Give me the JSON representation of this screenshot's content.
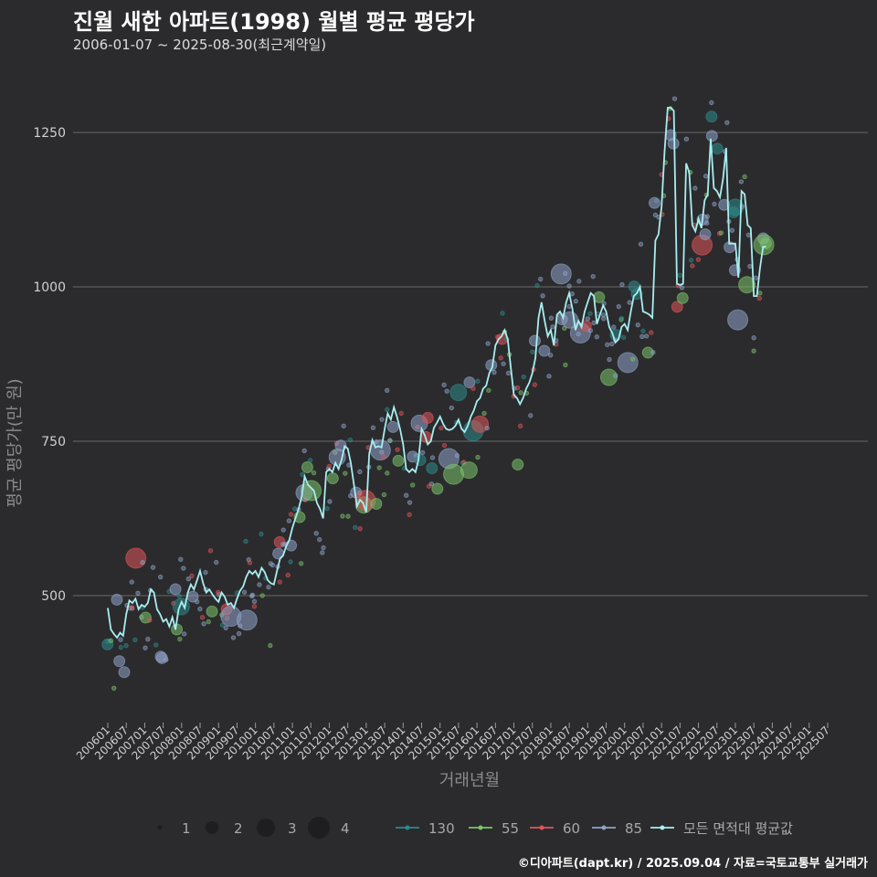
{
  "header": {
    "title": "진월 새한 아파트(1998) 월별 평균 평당가",
    "subtitle": "2006-01-07 ~ 2025-08-30(최근계약일)"
  },
  "footer": {
    "credit": "©디아파트(dapt.kr) / 2025.09.04 / 자료=국토교통부 실거래가"
  },
  "chart_data": {
    "type": "line",
    "xlabel": "거래년월",
    "ylabel": "평균 평당가(만 원)",
    "ylim": [
      290,
      1350
    ],
    "yticks": [
      500,
      750,
      1000,
      1250
    ],
    "grid": true,
    "legend_position": "bottom",
    "x_tick_labels": [
      "200601",
      "200607",
      "200701",
      "200707",
      "200801",
      "200807",
      "200901",
      "200907",
      "201001",
      "201007",
      "201101",
      "201107",
      "201201",
      "201207",
      "201301",
      "201307",
      "201401",
      "201407",
      "201501",
      "201507",
      "201601",
      "201607",
      "201701",
      "201707",
      "201801",
      "201807",
      "201901",
      "201907",
      "202001",
      "202007",
      "202101",
      "202107",
      "202201",
      "202207",
      "202301",
      "202307",
      "202401",
      "202407",
      "202501",
      "202507"
    ],
    "size_legend": {
      "values": [
        1,
        2,
        3,
        4
      ]
    },
    "series": [
      {
        "name": "130",
        "color": "#2e8b8b"
      },
      {
        "name": "55",
        "color": "#7cc36a"
      },
      {
        "name": "60",
        "color": "#e0555a"
      },
      {
        "name": "85",
        "color": "#8fa3c8"
      },
      {
        "name": "모든 면적대 평균값",
        "color": "#a8eef0"
      }
    ],
    "average_line": {
      "points": [
        [
          "2006-01",
          480
        ],
        [
          "2006-02",
          445
        ],
        [
          "2006-03",
          438
        ],
        [
          "2006-04",
          432
        ],
        [
          "2006-05",
          440
        ],
        [
          "2006-06",
          435
        ],
        [
          "2006-07",
          470
        ],
        [
          "2006-08",
          492
        ],
        [
          "2006-09",
          488
        ],
        [
          "2006-10",
          495
        ],
        [
          "2006-11",
          478
        ],
        [
          "2006-12",
          485
        ],
        [
          "2007-01",
          482
        ],
        [
          "2007-02",
          488
        ],
        [
          "2007-03",
          510
        ],
        [
          "2007-04",
          505
        ],
        [
          "2007-05",
          478
        ],
        [
          "2007-06",
          470
        ],
        [
          "2007-07",
          458
        ],
        [
          "2007-08",
          462
        ],
        [
          "2007-09",
          450
        ],
        [
          "2007-10",
          465
        ],
        [
          "2007-11",
          445
        ],
        [
          "2007-12",
          478
        ],
        [
          "2008-01",
          490
        ],
        [
          "2008-02",
          480
        ],
        [
          "2008-03",
          505
        ],
        [
          "2008-04",
          518
        ],
        [
          "2008-05",
          510
        ],
        [
          "2008-06",
          525
        ],
        [
          "2008-07",
          540
        ],
        [
          "2008-08",
          520
        ],
        [
          "2008-09",
          505
        ],
        [
          "2008-10",
          510
        ],
        [
          "2008-11",
          502
        ],
        [
          "2008-12",
          495
        ],
        [
          "2009-01",
          490
        ],
        [
          "2009-02",
          505
        ],
        [
          "2009-03",
          498
        ],
        [
          "2009-04",
          485
        ],
        [
          "2009-05",
          488
        ],
        [
          "2009-06",
          480
        ],
        [
          "2009-07",
          495
        ],
        [
          "2009-08",
          508
        ],
        [
          "2009-09",
          515
        ],
        [
          "2009-10",
          530
        ],
        [
          "2009-11",
          540
        ],
        [
          "2009-12",
          535
        ],
        [
          "2010-01",
          540
        ],
        [
          "2010-02",
          530
        ],
        [
          "2010-03",
          545
        ],
        [
          "2010-04",
          538
        ],
        [
          "2010-05",
          525
        ],
        [
          "2010-06",
          520
        ],
        [
          "2010-07",
          518
        ],
        [
          "2010-08",
          540
        ],
        [
          "2010-09",
          560
        ],
        [
          "2010-10",
          565
        ],
        [
          "2010-11",
          580
        ],
        [
          "2010-12",
          590
        ],
        [
          "2011-01",
          610
        ],
        [
          "2011-02",
          625
        ],
        [
          "2011-03",
          640
        ],
        [
          "2011-04",
          660
        ],
        [
          "2011-05",
          693
        ],
        [
          "2011-06",
          680
        ],
        [
          "2011-07",
          675
        ],
        [
          "2011-08",
          670
        ],
        [
          "2011-09",
          650
        ],
        [
          "2011-10",
          640
        ],
        [
          "2011-11",
          625
        ],
        [
          "2011-12",
          700
        ],
        [
          "2012-01",
          705
        ],
        [
          "2012-02",
          700
        ],
        [
          "2012-03",
          715
        ],
        [
          "2012-04",
          705
        ],
        [
          "2012-05",
          720
        ],
        [
          "2012-06",
          742
        ],
        [
          "2012-07",
          738
        ],
        [
          "2012-08",
          715
        ],
        [
          "2012-09",
          680
        ],
        [
          "2012-10",
          645
        ],
        [
          "2012-11",
          655
        ],
        [
          "2012-12",
          650
        ],
        [
          "2013-01",
          635
        ],
        [
          "2013-02",
          730
        ],
        [
          "2013-03",
          752
        ],
        [
          "2013-04",
          740
        ],
        [
          "2013-05",
          742
        ],
        [
          "2013-06",
          740
        ],
        [
          "2013-07",
          770
        ],
        [
          "2013-08",
          795
        ],
        [
          "2013-09",
          785
        ],
        [
          "2013-10",
          805
        ],
        [
          "2013-11",
          790
        ],
        [
          "2013-12",
          770
        ],
        [
          "2014-01",
          745
        ],
        [
          "2014-02",
          705
        ],
        [
          "2014-03",
          700
        ],
        [
          "2014-04",
          705
        ],
        [
          "2014-05",
          700
        ],
        [
          "2014-06",
          720
        ],
        [
          "2014-07",
          770
        ],
        [
          "2014-08",
          760
        ],
        [
          "2014-09",
          745
        ],
        [
          "2014-10",
          750
        ],
        [
          "2014-11",
          772
        ],
        [
          "2014-12",
          780
        ],
        [
          "2015-01",
          790
        ],
        [
          "2015-02",
          778
        ],
        [
          "2015-03",
          770
        ],
        [
          "2015-04",
          768
        ],
        [
          "2015-05",
          770
        ],
        [
          "2015-06",
          775
        ],
        [
          "2015-07",
          785
        ],
        [
          "2015-08",
          770
        ],
        [
          "2015-09",
          765
        ],
        [
          "2015-10",
          775
        ],
        [
          "2015-11",
          790
        ],
        [
          "2015-12",
          800
        ],
        [
          "2016-01",
          815
        ],
        [
          "2016-02",
          820
        ],
        [
          "2016-03",
          835
        ],
        [
          "2016-04",
          840
        ],
        [
          "2016-05",
          860
        ],
        [
          "2016-06",
          870
        ],
        [
          "2016-07",
          905
        ],
        [
          "2016-08",
          915
        ],
        [
          "2016-09",
          920
        ],
        [
          "2016-10",
          930
        ],
        [
          "2016-11",
          915
        ],
        [
          "2016-12",
          870
        ],
        [
          "2017-01",
          825
        ],
        [
          "2017-02",
          820
        ],
        [
          "2017-03",
          810
        ],
        [
          "2017-04",
          820
        ],
        [
          "2017-05",
          835
        ],
        [
          "2017-06",
          845
        ],
        [
          "2017-07",
          860
        ],
        [
          "2017-08",
          885
        ],
        [
          "2017-09",
          950
        ],
        [
          "2017-10",
          975
        ],
        [
          "2017-11",
          945
        ],
        [
          "2017-12",
          920
        ],
        [
          "2018-01",
          930
        ],
        [
          "2018-02",
          905
        ],
        [
          "2018-03",
          955
        ],
        [
          "2018-04",
          960
        ],
        [
          "2018-05",
          950
        ],
        [
          "2018-06",
          975
        ],
        [
          "2018-07",
          990
        ],
        [
          "2018-08",
          965
        ],
        [
          "2018-09",
          930
        ],
        [
          "2018-10",
          945
        ],
        [
          "2018-11",
          935
        ],
        [
          "2018-12",
          960
        ],
        [
          "2019-01",
          975
        ],
        [
          "2019-02",
          990
        ],
        [
          "2019-03",
          985
        ],
        [
          "2019-04",
          940
        ],
        [
          "2019-05",
          955
        ],
        [
          "2019-06",
          970
        ],
        [
          "2019-07",
          960
        ],
        [
          "2019-08",
          935
        ],
        [
          "2019-09",
          925
        ],
        [
          "2019-10",
          910
        ],
        [
          "2019-11",
          915
        ],
        [
          "2019-12",
          935
        ],
        [
          "2020-01",
          940
        ],
        [
          "2020-02",
          930
        ],
        [
          "2020-03",
          960
        ],
        [
          "2020-04",
          985
        ],
        [
          "2020-05",
          990
        ],
        [
          "2020-06",
          1000
        ],
        [
          "2020-07",
          960
        ],
        [
          "2020-08",
          958
        ],
        [
          "2020-09",
          955
        ],
        [
          "2020-10",
          950
        ],
        [
          "2020-11",
          1075
        ],
        [
          "2020-12",
          1085
        ],
        [
          "2021-01",
          1130
        ],
        [
          "2021-02",
          1220
        ],
        [
          "2021-03",
          1290
        ],
        [
          "2021-04",
          1290
        ],
        [
          "2021-05",
          1285
        ],
        [
          "2021-06",
          1005
        ],
        [
          "2021-07",
          1003
        ],
        [
          "2021-08",
          1005
        ],
        [
          "2021-09",
          1200
        ],
        [
          "2021-10",
          1185
        ],
        [
          "2021-11",
          1100
        ],
        [
          "2021-12",
          1090
        ],
        [
          "2022-01",
          1110
        ],
        [
          "2022-02",
          1095
        ],
        [
          "2022-03",
          1140
        ],
        [
          "2022-04",
          1150
        ],
        [
          "2022-05",
          1240
        ],
        [
          "2022-06",
          1160
        ],
        [
          "2022-07",
          1155
        ],
        [
          "2022-08",
          1145
        ],
        [
          "2022-09",
          1175
        ],
        [
          "2022-10",
          1225
        ],
        [
          "2022-11",
          1070
        ],
        [
          "2022-12",
          1070
        ],
        [
          "2023-01",
          1070
        ],
        [
          "2023-02",
          1015
        ],
        [
          "2023-03",
          1155
        ],
        [
          "2023-04",
          1150
        ],
        [
          "2023-05",
          1100
        ],
        [
          "2023-06",
          1095
        ],
        [
          "2023-07",
          985
        ],
        [
          "2023-08",
          985
        ],
        [
          "2023-09",
          1030
        ],
        [
          "2023-10",
          1065
        ],
        [
          "2023-11",
          1065
        ]
      ]
    },
    "size_note": "point size = transaction count (1-4)"
  }
}
